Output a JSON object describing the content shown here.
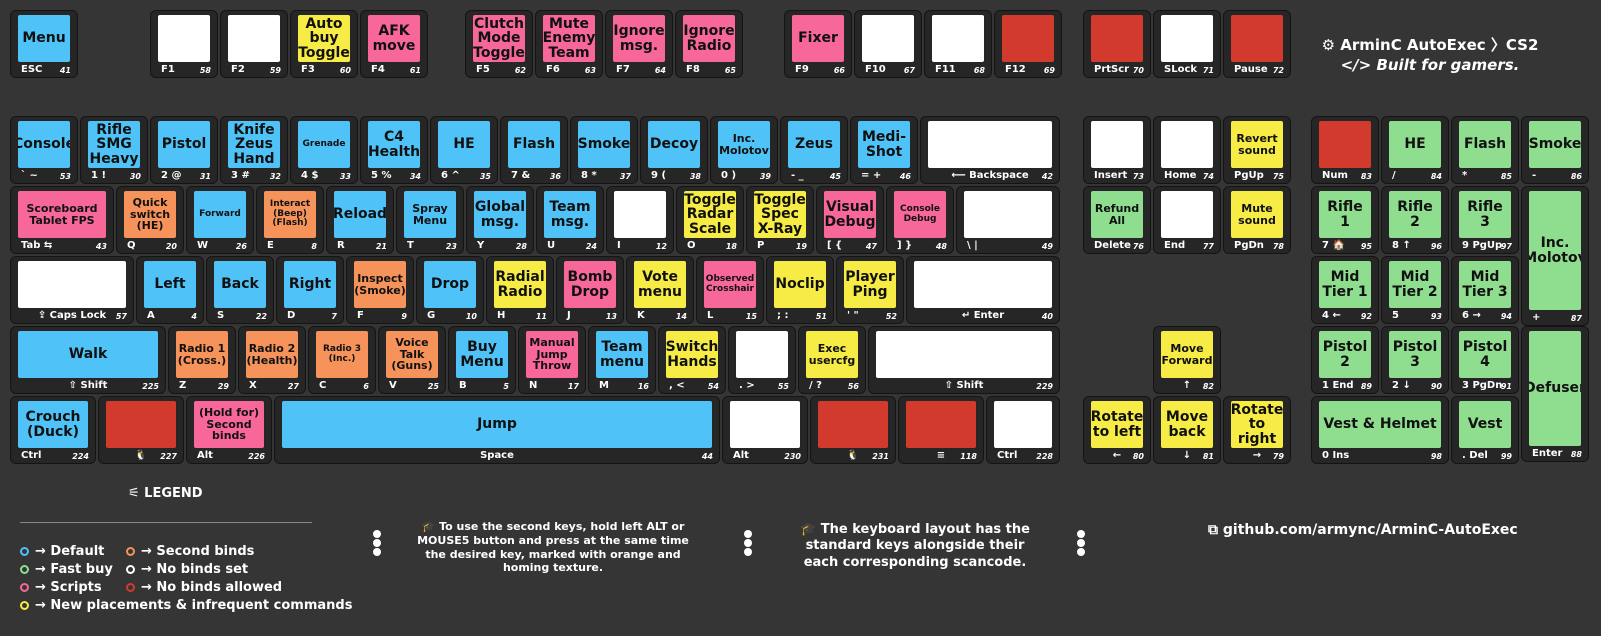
{
  "brand": {
    "line1": "⚙ ArminC AutoExec 〉CS2",
    "line2": "</> Built for gamers."
  },
  "keys": [
    {
      "id": "esc",
      "color": "c-blue",
      "cap": "Menu",
      "lbl": "ESC",
      "sc": "41"
    },
    {
      "id": "f1",
      "color": "c-white",
      "cap": "",
      "lbl": "F1",
      "sc": "58"
    },
    {
      "id": "f2",
      "color": "c-white",
      "cap": "",
      "lbl": "F2",
      "sc": "59"
    },
    {
      "id": "f3",
      "color": "c-yellow",
      "cap": "Auto buy Toggle",
      "lbl": "F3",
      "sc": "60"
    },
    {
      "id": "f4",
      "color": "c-pink",
      "cap": "AFK move",
      "lbl": "F4",
      "sc": "61"
    },
    {
      "id": "f5",
      "color": "c-pink",
      "cap": "Clutch Mode Toggle",
      "lbl": "F5",
      "sc": "62"
    },
    {
      "id": "f6",
      "color": "c-pink",
      "cap": "Mute Enemy Team",
      "lbl": "F6",
      "sc": "63"
    },
    {
      "id": "f7",
      "color": "c-pink",
      "cap": "Ignore msg.",
      "lbl": "F7",
      "sc": "64"
    },
    {
      "id": "f8",
      "color": "c-pink",
      "cap": "Ignore Radio",
      "lbl": "F8",
      "sc": "65"
    },
    {
      "id": "f9",
      "color": "c-pink",
      "cap": "Fixer",
      "lbl": "F9",
      "sc": "66"
    },
    {
      "id": "f10",
      "color": "c-white",
      "cap": "",
      "lbl": "F10",
      "sc": "67"
    },
    {
      "id": "f11",
      "color": "c-white",
      "cap": "",
      "lbl": "F11",
      "sc": "68"
    },
    {
      "id": "f12",
      "color": "c-red",
      "cap": "",
      "lbl": "F12",
      "sc": "69"
    },
    {
      "id": "prtscr",
      "color": "c-red",
      "cap": "",
      "lbl": "PrtScr",
      "sc": "70"
    },
    {
      "id": "slock",
      "color": "c-white",
      "cap": "",
      "lbl": "SLock",
      "sc": "71"
    },
    {
      "id": "pause",
      "color": "c-red",
      "cap": "",
      "lbl": "Pause",
      "sc": "72"
    },
    {
      "id": "tilde",
      "color": "c-blue",
      "cap": "Console",
      "lbl": "` ~",
      "sc": "53"
    },
    {
      "id": "k1",
      "color": "c-blue",
      "cap": "Rifle SMG Heavy",
      "lbl": "1 !",
      "sc": "30"
    },
    {
      "id": "k2",
      "color": "c-blue",
      "cap": "Pistol",
      "lbl": "2 @",
      "sc": "31"
    },
    {
      "id": "k3",
      "color": "c-blue",
      "cap": "Knife Zeus Hand",
      "lbl": "3 #",
      "sc": "32"
    },
    {
      "id": "k4",
      "color": "c-blue",
      "cap": "Grenade",
      "lbl": "4 $",
      "sc": "33"
    },
    {
      "id": "k5",
      "color": "c-blue",
      "cap": "C4 Health",
      "lbl": "5 %",
      "sc": "34"
    },
    {
      "id": "k6",
      "color": "c-blue",
      "cap": "HE",
      "lbl": "6 ^",
      "sc": "35"
    },
    {
      "id": "k7",
      "color": "c-blue",
      "cap": "Flash",
      "lbl": "7 &",
      "sc": "36"
    },
    {
      "id": "k8",
      "color": "c-blue",
      "cap": "Smoke",
      "lbl": "8 *",
      "sc": "37"
    },
    {
      "id": "k9",
      "color": "c-blue",
      "cap": "Decoy",
      "lbl": "9 (",
      "sc": "38"
    },
    {
      "id": "k0",
      "color": "c-blue",
      "cap": "Inc. Molotov",
      "lbl": "0 )",
      "sc": "39"
    },
    {
      "id": "minus",
      "color": "c-blue",
      "cap": "Zeus",
      "lbl": "- _",
      "sc": "45"
    },
    {
      "id": "equal",
      "color": "c-blue",
      "cap": "Medi-Shot",
      "lbl": "= +",
      "sc": "46"
    },
    {
      "id": "backspace",
      "color": "c-white",
      "cap": "",
      "lbl": "⟵ Backspace",
      "sc": "42"
    },
    {
      "id": "insert",
      "color": "c-white",
      "cap": "",
      "lbl": "Insert",
      "sc": "73"
    },
    {
      "id": "home",
      "color": "c-white",
      "cap": "",
      "lbl": "Home",
      "sc": "74"
    },
    {
      "id": "pgup",
      "color": "c-yellow",
      "cap": "Revert sound",
      "lbl": "PgUp",
      "sc": "75"
    },
    {
      "id": "num",
      "color": "c-red",
      "cap": "",
      "lbl": "Num",
      "sc": "83"
    },
    {
      "id": "npslash",
      "color": "c-green",
      "cap": "HE",
      "lbl": "/",
      "sc": "84"
    },
    {
      "id": "npstar",
      "color": "c-green",
      "cap": "Flash",
      "lbl": "*",
      "sc": "85"
    },
    {
      "id": "npminus",
      "color": "c-green",
      "cap": "Smoke",
      "lbl": "-",
      "sc": "86"
    },
    {
      "id": "tab",
      "color": "c-pink",
      "cap": "Scoreboard Tablet FPS",
      "lbl": "Tab ⇆",
      "sc": "43"
    },
    {
      "id": "q",
      "color": "c-orange",
      "cap": "Quick switch (HE)",
      "lbl": "Q",
      "sc": "20"
    },
    {
      "id": "w",
      "color": "c-blue",
      "cap": "Forward",
      "lbl": "W",
      "sc": "26"
    },
    {
      "id": "e",
      "color": "c-orange",
      "cap": "Interact (Beep) (Flash)",
      "lbl": "E",
      "sc": "8"
    },
    {
      "id": "r",
      "color": "c-blue",
      "cap": "Reload",
      "lbl": "R",
      "sc": "21"
    },
    {
      "id": "t",
      "color": "c-blue",
      "cap": "Spray Menu",
      "lbl": "T",
      "sc": "23"
    },
    {
      "id": "y",
      "color": "c-blue",
      "cap": "Global msg.",
      "lbl": "Y",
      "sc": "28"
    },
    {
      "id": "u",
      "color": "c-blue",
      "cap": "Team msg.",
      "lbl": "U",
      "sc": "24"
    },
    {
      "id": "i",
      "color": "c-white",
      "cap": "",
      "lbl": "I",
      "sc": "12"
    },
    {
      "id": "o",
      "color": "c-yellow",
      "cap": "Toggle Radar Scale",
      "lbl": "O",
      "sc": "18"
    },
    {
      "id": "p",
      "color": "c-yellow",
      "cap": "Toggle Spec X-Ray",
      "lbl": "P",
      "sc": "19"
    },
    {
      "id": "lbracket",
      "color": "c-pink",
      "cap": "Visual Debug",
      "lbl": "[ {",
      "sc": "47"
    },
    {
      "id": "rbracket",
      "color": "c-pink",
      "cap": "Console Debug",
      "lbl": "] }",
      "sc": "48"
    },
    {
      "id": "backslash",
      "color": "c-white",
      "cap": "",
      "lbl": "\\ |",
      "sc": "49"
    },
    {
      "id": "delete",
      "color": "c-green",
      "cap": "Refund All",
      "lbl": "Delete",
      "sc": "76"
    },
    {
      "id": "end",
      "color": "c-white",
      "cap": "",
      "lbl": "End",
      "sc": "77"
    },
    {
      "id": "pgdn",
      "color": "c-yellow",
      "cap": "Mute sound",
      "lbl": "PgDn",
      "sc": "78"
    },
    {
      "id": "np7",
      "color": "c-green",
      "cap": "Rifle 1",
      "lbl": "7 🏠",
      "sc": "95"
    },
    {
      "id": "np8",
      "color": "c-green",
      "cap": "Rifle 2",
      "lbl": "8 ↑",
      "sc": "96"
    },
    {
      "id": "np9",
      "color": "c-green",
      "cap": "Rifle 3",
      "lbl": "9 PgUp",
      "sc": "97"
    },
    {
      "id": "npplus",
      "color": "c-green",
      "cap": "Inc. Molotov",
      "lbl": "+",
      "sc": "87"
    },
    {
      "id": "caps",
      "color": "c-white",
      "cap": "",
      "lbl": "⇪ Caps Lock",
      "sc": "57"
    },
    {
      "id": "a",
      "color": "c-blue",
      "cap": "Left",
      "lbl": "A",
      "sc": "4"
    },
    {
      "id": "s",
      "color": "c-blue",
      "cap": "Back",
      "lbl": "S",
      "sc": "22"
    },
    {
      "id": "d",
      "color": "c-blue",
      "cap": "Right",
      "lbl": "D",
      "sc": "7"
    },
    {
      "id": "f",
      "color": "c-orange",
      "cap": "Inspect (Smoke)",
      "lbl": "F",
      "sc": "9"
    },
    {
      "id": "g",
      "color": "c-blue",
      "cap": "Drop",
      "lbl": "G",
      "sc": "10"
    },
    {
      "id": "h",
      "color": "c-yellow",
      "cap": "Radial Radio",
      "lbl": "H",
      "sc": "11"
    },
    {
      "id": "j",
      "color": "c-pink",
      "cap": "Bomb Drop",
      "lbl": "J",
      "sc": "13"
    },
    {
      "id": "k",
      "color": "c-yellow",
      "cap": "Vote menu",
      "lbl": "K",
      "sc": "14"
    },
    {
      "id": "l",
      "color": "c-pink",
      "cap": "Observed Crosshair",
      "lbl": "L",
      "sc": "15"
    },
    {
      "id": "semicolon",
      "color": "c-yellow",
      "cap": "Noclip",
      "lbl": "; :",
      "sc": "51"
    },
    {
      "id": "quote",
      "color": "c-yellow",
      "cap": "Player Ping",
      "lbl": "' \"",
      "sc": "52"
    },
    {
      "id": "enter",
      "color": "c-white",
      "cap": "",
      "lbl": "↵ Enter",
      "sc": "40"
    },
    {
      "id": "np4",
      "color": "c-green",
      "cap": "Mid Tier 1",
      "lbl": "4 ←",
      "sc": "92"
    },
    {
      "id": "np5",
      "color": "c-green",
      "cap": "Mid Tier 2",
      "lbl": "5",
      "sc": "93"
    },
    {
      "id": "np6",
      "color": "c-green",
      "cap": "Mid Tier 3",
      "lbl": "6 →",
      "sc": "94"
    },
    {
      "id": "lshift",
      "color": "c-blue",
      "cap": "Walk",
      "lbl": "⇧ Shift",
      "sc": "225"
    },
    {
      "id": "z",
      "color": "c-orange",
      "cap": "Radio 1 (Cross.)",
      "lbl": "Z",
      "sc": "29"
    },
    {
      "id": "x",
      "color": "c-orange",
      "cap": "Radio 2 (Health)",
      "lbl": "X",
      "sc": "27"
    },
    {
      "id": "c",
      "color": "c-orange",
      "cap": "Radio 3 (Inc.)",
      "lbl": "C",
      "sc": "6"
    },
    {
      "id": "v",
      "color": "c-orange",
      "cap": "Voice Talk (Guns)",
      "lbl": "V",
      "sc": "25"
    },
    {
      "id": "b",
      "color": "c-blue",
      "cap": "Buy Menu",
      "lbl": "B",
      "sc": "5"
    },
    {
      "id": "n",
      "color": "c-pink",
      "cap": "Manual Jump Throw",
      "lbl": "N",
      "sc": "17"
    },
    {
      "id": "m",
      "color": "c-blue",
      "cap": "Team menu",
      "lbl": "M",
      "sc": "16"
    },
    {
      "id": "comma",
      "color": "c-yellow",
      "cap": "Switch Hands",
      "lbl": ", <",
      "sc": "54"
    },
    {
      "id": "period",
      "color": "c-white",
      "cap": "",
      "lbl": ". >",
      "sc": "55"
    },
    {
      "id": "slash",
      "color": "c-yellow",
      "cap": "Exec usercfg",
      "lbl": "/ ?",
      "sc": "56"
    },
    {
      "id": "rshift",
      "color": "c-white",
      "cap": "",
      "lbl": "⇧ Shift",
      "sc": "229"
    },
    {
      "id": "up",
      "color": "c-yellow",
      "cap": "Move Forward",
      "lbl": "↑",
      "sc": "82"
    },
    {
      "id": "np1",
      "color": "c-green",
      "cap": "Pistol 2",
      "lbl": "1 End",
      "sc": "89"
    },
    {
      "id": "np2",
      "color": "c-green",
      "cap": "Pistol 3",
      "lbl": "2 ↓",
      "sc": "90"
    },
    {
      "id": "np3",
      "color": "c-green",
      "cap": "Pistol 4",
      "lbl": "3 PgDn",
      "sc": "91"
    },
    {
      "id": "npenter",
      "color": "c-green",
      "cap": "Defuser",
      "lbl": "Enter",
      "sc": "88"
    },
    {
      "id": "lctrl",
      "color": "c-blue",
      "cap": "Crouch (Duck)",
      "lbl": "Ctrl",
      "sc": "224"
    },
    {
      "id": "lwin",
      "color": "c-red",
      "cap": "",
      "lbl": "🐧",
      "sc": "227"
    },
    {
      "id": "lalt",
      "color": "c-pink",
      "cap": "(Hold for) Second binds",
      "lbl": "Alt",
      "sc": "226"
    },
    {
      "id": "space",
      "color": "c-blue",
      "cap": "Jump",
      "lbl": "Space",
      "sc": "44"
    },
    {
      "id": "ralt",
      "color": "c-white",
      "cap": "",
      "lbl": "Alt",
      "sc": "230"
    },
    {
      "id": "rwin",
      "color": "c-red",
      "cap": "",
      "lbl": "🐧",
      "sc": "231"
    },
    {
      "id": "menu",
      "color": "c-red",
      "cap": "",
      "lbl": "≡",
      "sc": "118"
    },
    {
      "id": "rctrl",
      "color": "c-white",
      "cap": "",
      "lbl": "Ctrl",
      "sc": "228"
    },
    {
      "id": "left",
      "color": "c-yellow",
      "cap": "Rotate to left",
      "lbl": "←",
      "sc": "80"
    },
    {
      "id": "down",
      "color": "c-yellow",
      "cap": "Move back",
      "lbl": "↓",
      "sc": "81"
    },
    {
      "id": "right",
      "color": "c-yellow",
      "cap": "Rotate to right",
      "lbl": "→",
      "sc": "79"
    },
    {
      "id": "np0",
      "color": "c-green",
      "cap": "Vest & Helmet",
      "lbl": "0 Ins",
      "sc": "98"
    },
    {
      "id": "npdel",
      "color": "c-green",
      "cap": "Vest",
      "lbl": ". Del",
      "sc": "99"
    }
  ],
  "legend": {
    "title": "⚟ LEGEND",
    "items": [
      {
        "text": "→ Default",
        "color": "#4fc3f7"
      },
      {
        "text": "→ Second binds",
        "color": "#f5935a"
      },
      {
        "text": "→ Fast buy",
        "color": "#8fdd8f"
      },
      {
        "text": "→ No binds set",
        "color": "#ffffff"
      },
      {
        "text": "→ Scripts",
        "color": "#f7679a"
      },
      {
        "text": "→ No binds allowed",
        "color": "#d23a2d"
      },
      {
        "text": "→ New placements & infrequent commands",
        "color": "#f6ec45"
      }
    ]
  },
  "notes": {
    "alt": "🎓 To use the second keys, hold left ALT or MOUSE5 button and press at the same time the desired key, marked with orange and homing texture.",
    "layout": "🎓 The keyboard layout has the standard keys alongside their each corresponding scancode."
  },
  "github": "⧉ github.com/armync/ArminC-AutoExec"
}
